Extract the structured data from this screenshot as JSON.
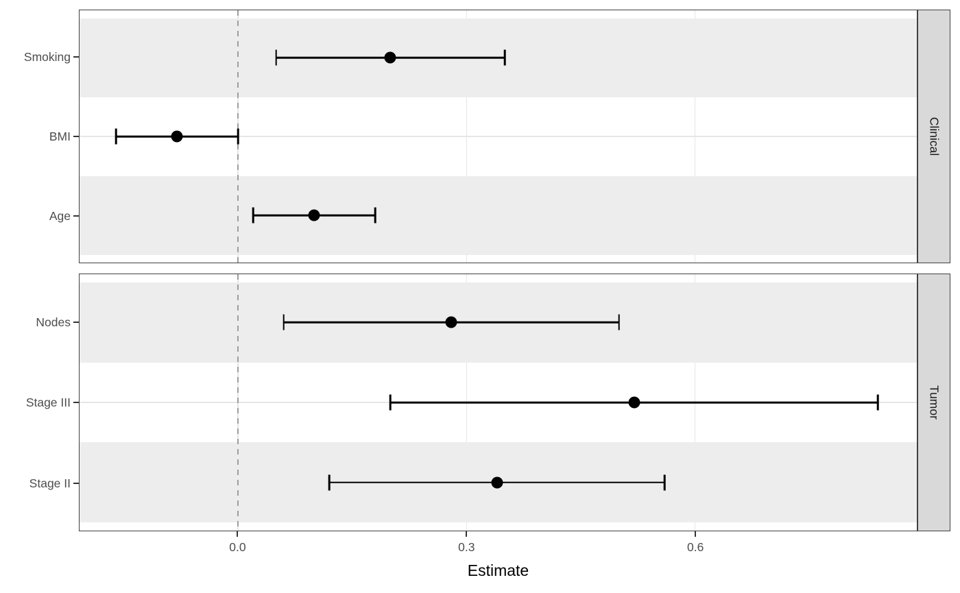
{
  "chart_data": {
    "type": "scatter",
    "subtype": "forest-plot-with-error-bars",
    "title": "",
    "xlabel": "Estimate",
    "ylabel": "",
    "xlim": [
      -0.208,
      0.891
    ],
    "x_ticks": [
      0.0,
      0.3,
      0.6
    ],
    "x_tick_labels": [
      "0.0",
      "0.3",
      "0.6"
    ],
    "grid": "major-on",
    "legend": "none",
    "reference_line": {
      "x": 0.0,
      "style": "dashed"
    },
    "facets": [
      {
        "label": "Clinical",
        "rows": [
          {
            "label": "Smoking",
            "estimate": 0.2,
            "ci_low": 0.05,
            "ci_high": 0.35
          },
          {
            "label": "BMI",
            "estimate": -0.08,
            "ci_low": -0.16,
            "ci_high": 0.0
          },
          {
            "label": "Age",
            "estimate": 0.1,
            "ci_low": 0.02,
            "ci_high": 0.18
          }
        ]
      },
      {
        "label": "Tumor",
        "rows": [
          {
            "label": "Nodes",
            "estimate": 0.28,
            "ci_low": 0.06,
            "ci_high": 0.5
          },
          {
            "label": "Stage III",
            "estimate": 0.52,
            "ci_low": 0.2,
            "ci_high": 0.84
          },
          {
            "label": "Stage II",
            "estimate": 0.34,
            "ci_low": 0.12,
            "ci_high": 0.56
          }
        ]
      }
    ],
    "colors": {
      "point": "#000000",
      "error_bar": "#000000",
      "stripe_band": "#EDEDED",
      "grid_line": "#E6E6E6",
      "facet_strip_background": "#D9D9D9",
      "panel_border": "#404040",
      "reference_line": "#9E9E9E",
      "axis_text": "#4D4D4D"
    }
  }
}
